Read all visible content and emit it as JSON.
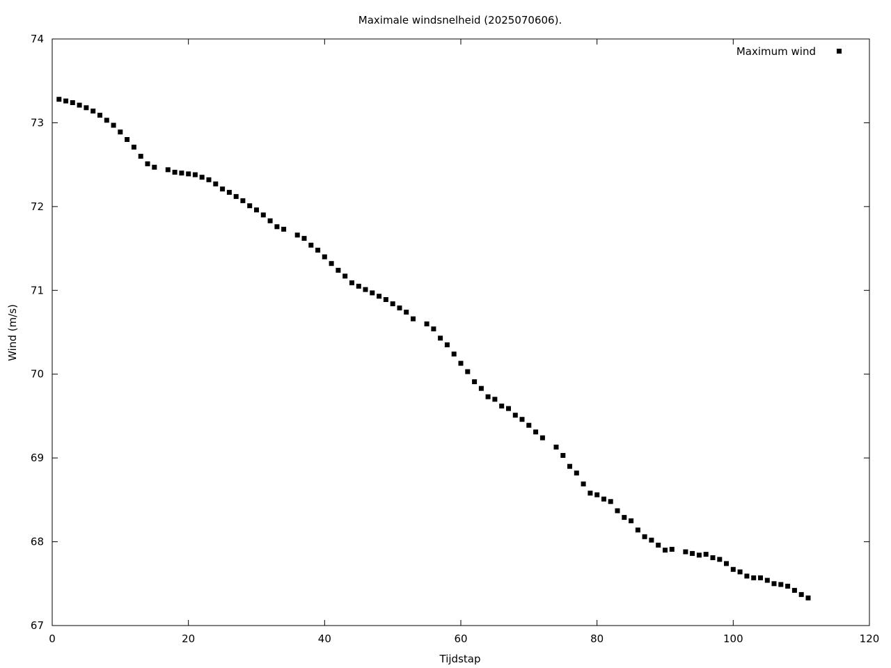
{
  "chart_data": {
    "type": "scatter",
    "title": "Maximale windsnelheid (2025070606).",
    "xlabel": "Tijdstap",
    "ylabel": "Wind (m/s)",
    "xlim": [
      0,
      120
    ],
    "ylim": [
      67,
      74
    ],
    "xticks": [
      0,
      20,
      40,
      60,
      80,
      100,
      120
    ],
    "yticks": [
      67,
      68,
      69,
      70,
      71,
      72,
      73,
      74
    ],
    "grid": false,
    "legend_position": "top-right",
    "marker_color": "#000000",
    "series": [
      {
        "name": "Maximum wind",
        "marker": "square",
        "x": [
          1,
          2,
          3,
          4,
          5,
          6,
          7,
          8,
          9,
          10,
          11,
          12,
          13,
          14,
          15,
          17,
          18,
          19,
          20,
          21,
          22,
          23,
          24,
          25,
          26,
          27,
          28,
          29,
          30,
          31,
          32,
          33,
          34,
          36,
          37,
          38,
          39,
          40,
          41,
          42,
          43,
          44,
          45,
          46,
          47,
          48,
          49,
          50,
          51,
          52,
          53,
          55,
          56,
          57,
          58,
          59,
          60,
          61,
          62,
          63,
          64,
          65,
          66,
          67,
          68,
          69,
          70,
          71,
          72,
          74,
          75,
          76,
          77,
          78,
          79,
          80,
          81,
          82,
          83,
          84,
          85,
          86,
          87,
          88,
          89,
          90,
          91,
          93,
          94,
          95,
          96,
          97,
          98,
          99,
          100,
          101,
          102,
          103,
          104,
          105,
          106,
          107,
          108,
          109,
          110,
          111
        ],
        "y": [
          73.28,
          73.26,
          73.24,
          73.21,
          73.18,
          73.14,
          73.09,
          73.03,
          72.97,
          72.89,
          72.8,
          72.71,
          72.6,
          72.51,
          72.47,
          72.44,
          72.41,
          72.4,
          72.39,
          72.38,
          72.35,
          72.32,
          72.27,
          72.21,
          72.17,
          72.12,
          72.07,
          72.01,
          71.96,
          71.9,
          71.83,
          71.76,
          71.73,
          71.66,
          71.62,
          71.54,
          71.48,
          71.4,
          71.32,
          71.24,
          71.17,
          71.09,
          71.05,
          71.01,
          70.97,
          70.93,
          70.89,
          70.84,
          70.79,
          70.74,
          70.66,
          70.6,
          70.54,
          70.43,
          70.35,
          70.24,
          70.13,
          70.03,
          69.91,
          69.83,
          69.73,
          69.7,
          69.62,
          69.59,
          69.51,
          69.46,
          69.39,
          69.31,
          69.24,
          69.13,
          69.03,
          68.9,
          68.82,
          68.69,
          68.58,
          68.56,
          68.51,
          68.48,
          68.37,
          68.29,
          68.25,
          68.14,
          68.06,
          68.02,
          67.96,
          67.9,
          67.91,
          67.88,
          67.86,
          67.84,
          67.85,
          67.81,
          67.79,
          67.74,
          67.67,
          67.64,
          67.59,
          67.57,
          67.57,
          67.54,
          67.5,
          67.49,
          67.47,
          67.42,
          67.37,
          67.33
        ]
      }
    ]
  }
}
